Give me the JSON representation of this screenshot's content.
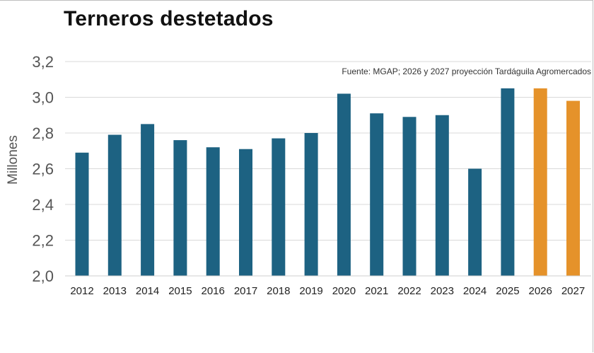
{
  "chart_data": {
    "type": "bar",
    "title": "Terneros destetados",
    "ylabel": "Millones",
    "xlabel": "",
    "source_note": "Fuente: MGAP; 2026 y 2027 proyección Tardáguila Agromercados",
    "ylim": [
      2.0,
      3.2
    ],
    "yticks": [
      "2,0",
      "2,2",
      "2,4",
      "2,6",
      "2,8",
      "3,0",
      "3,2"
    ],
    "grid": true,
    "categories": [
      "2012",
      "2013",
      "2014",
      "2015",
      "2016",
      "2017",
      "2018",
      "2019",
      "2020",
      "2021",
      "2022",
      "2023",
      "2024",
      "2025",
      "2026",
      "2027"
    ],
    "series": [
      {
        "values": [
          2.69,
          2.79,
          2.85,
          2.76,
          2.72,
          2.71,
          2.77,
          2.8,
          3.02,
          2.91,
          2.89,
          2.9,
          2.6,
          3.05,
          3.05,
          2.98
        ]
      }
    ],
    "colors": {
      "historical": "#1d6282",
      "projection": "#e5922a",
      "grid": "#d9d9d9"
    },
    "projection_categories": [
      "2026",
      "2027"
    ]
  }
}
